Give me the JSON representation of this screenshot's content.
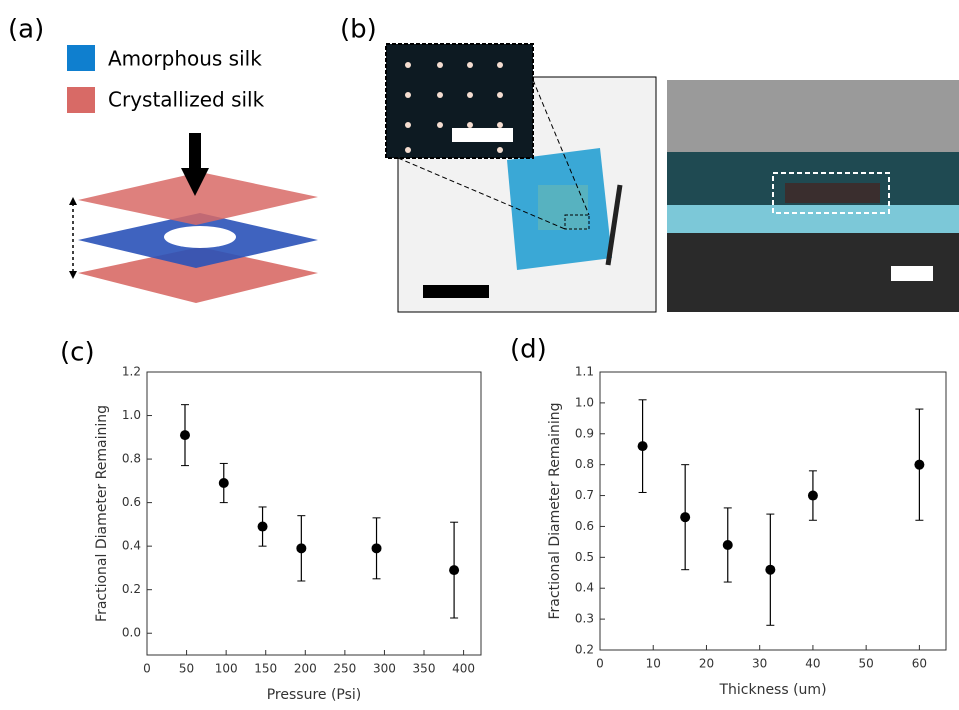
{
  "panel_labels": [
    "(a)",
    "(b)",
    "(c)",
    "(d)"
  ],
  "legend": [
    "Amorphous silk",
    "Crystallized silk"
  ],
  "chart_data": [
    {
      "type": "scatter",
      "xlabel": "Pressure (Psi)",
      "ylabel": "Fractional Diameter Remaining",
      "x": [
        48,
        97,
        146,
        195,
        290,
        388
      ],
      "series": [
        {
          "color": "#000000",
          "values": [
            0.91,
            0.69,
            0.49,
            0.39,
            0.39,
            0.29
          ],
          "errors": [
            0.14,
            0.09,
            0.09,
            0.15,
            0.14,
            0.22
          ]
        }
      ],
      "xlim": [
        0,
        422
      ],
      "xticks": [
        0,
        50,
        100,
        150,
        200,
        250,
        300,
        350,
        400
      ],
      "ylim": [
        -0.1,
        1.2
      ],
      "yticks": [
        {
          "value": 0,
          "label": "0.0"
        },
        0.2,
        0.4,
        0.6,
        0.8,
        {
          "value": 1,
          "label": "1.0"
        },
        1.2
      ]
    },
    {
      "type": "scatter",
      "xlabel": "Thickness (um)",
      "ylabel": "Fractional Diameter Remaining",
      "x": [
        8,
        16,
        24,
        32,
        40,
        60
      ],
      "series": [
        {
          "color": "#000000",
          "values": [
            0.86,
            0.63,
            0.54,
            0.46,
            0.7,
            0.8
          ],
          "errors": [
            0.15,
            0.17,
            0.12,
            0.18,
            0.08,
            0.18
          ]
        }
      ],
      "xlim": [
        0,
        65
      ],
      "xticks": [
        0,
        10,
        20,
        30,
        40,
        50,
        60
      ],
      "ylim": [
        0.2,
        1.1
      ],
      "yticks": [
        0.2,
        0.3,
        0.4,
        0.5,
        0.6,
        0.7,
        0.8,
        0.9,
        {
          "value": 1,
          "label": "1.0"
        },
        1.1
      ]
    }
  ]
}
